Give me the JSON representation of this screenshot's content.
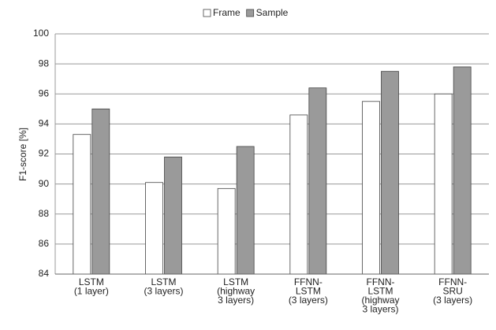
{
  "chart_data": {
    "type": "bar",
    "y_label": "F1-score [%]",
    "categories": [
      [
        "LSTM",
        "(1 layer)"
      ],
      [
        "LSTM",
        "(3 layers)"
      ],
      [
        "LSTM",
        "(highway",
        "3 layers)"
      ],
      [
        "FFNN-",
        "LSTM",
        "(3 layers)"
      ],
      [
        "FFNN-",
        "LSTM",
        "(highway",
        "3 layers)"
      ],
      [
        "FFNN-",
        "SRU",
        "(3 layers)"
      ]
    ],
    "series": [
      {
        "name": "Frame",
        "color": "#ffffff",
        "values": [
          93.3,
          90.1,
          89.7,
          94.6,
          95.5,
          96.0
        ]
      },
      {
        "name": "Sample",
        "color": "#9a9a9a",
        "values": [
          95.0,
          91.8,
          92.5,
          96.4,
          97.5,
          97.8
        ]
      }
    ],
    "ylim": [
      84,
      100
    ],
    "yticks": [
      84,
      86,
      88,
      90,
      92,
      94,
      96,
      98,
      100
    ],
    "grid": true,
    "legend": "top"
  }
}
